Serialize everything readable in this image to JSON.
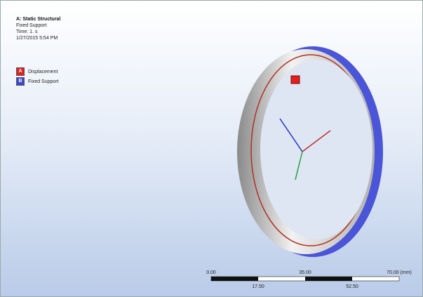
{
  "header": {
    "title": "A: Static Structural",
    "lines": [
      "Fixed Support",
      "Time: 1. s",
      "1/27/2015 5:54 PM"
    ]
  },
  "legend": [
    {
      "letter": "A",
      "label": "Displacement"
    },
    {
      "letter": "B",
      "label": "Fixed Support"
    }
  ],
  "scale_bar": {
    "top": [
      "0.00",
      "35.00",
      "70.00 (mm)"
    ],
    "bottom": [
      "17.50",
      "52.50"
    ]
  }
}
